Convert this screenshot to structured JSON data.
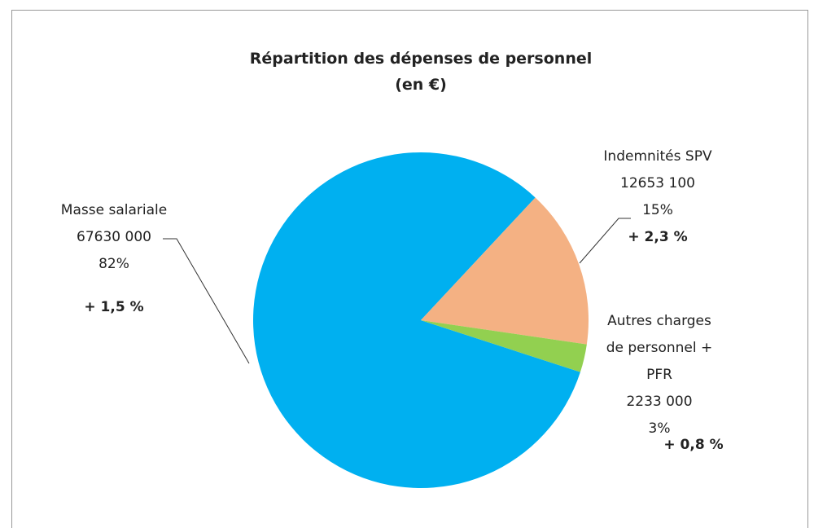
{
  "chart_data": {
    "type": "pie",
    "title": "Répartition des dépenses de personnel",
    "subtitle": "(en €)",
    "categories": [
      "Masse salariale",
      "Indemnités SPV",
      "Autres charges de personnel + PFR"
    ],
    "values": [
      67630000,
      12653100,
      2233000
    ],
    "value_labels": [
      "67630 000",
      "12653 100",
      "2233 000"
    ],
    "percent_labels": [
      "82%",
      "15%",
      "3%"
    ],
    "annotations": [
      "+ 1,5 %",
      "+ 2,3 %",
      "+ 0,8 %"
    ],
    "colors": [
      "#00b0f0",
      "#f4b183",
      "#92d050"
    ]
  }
}
